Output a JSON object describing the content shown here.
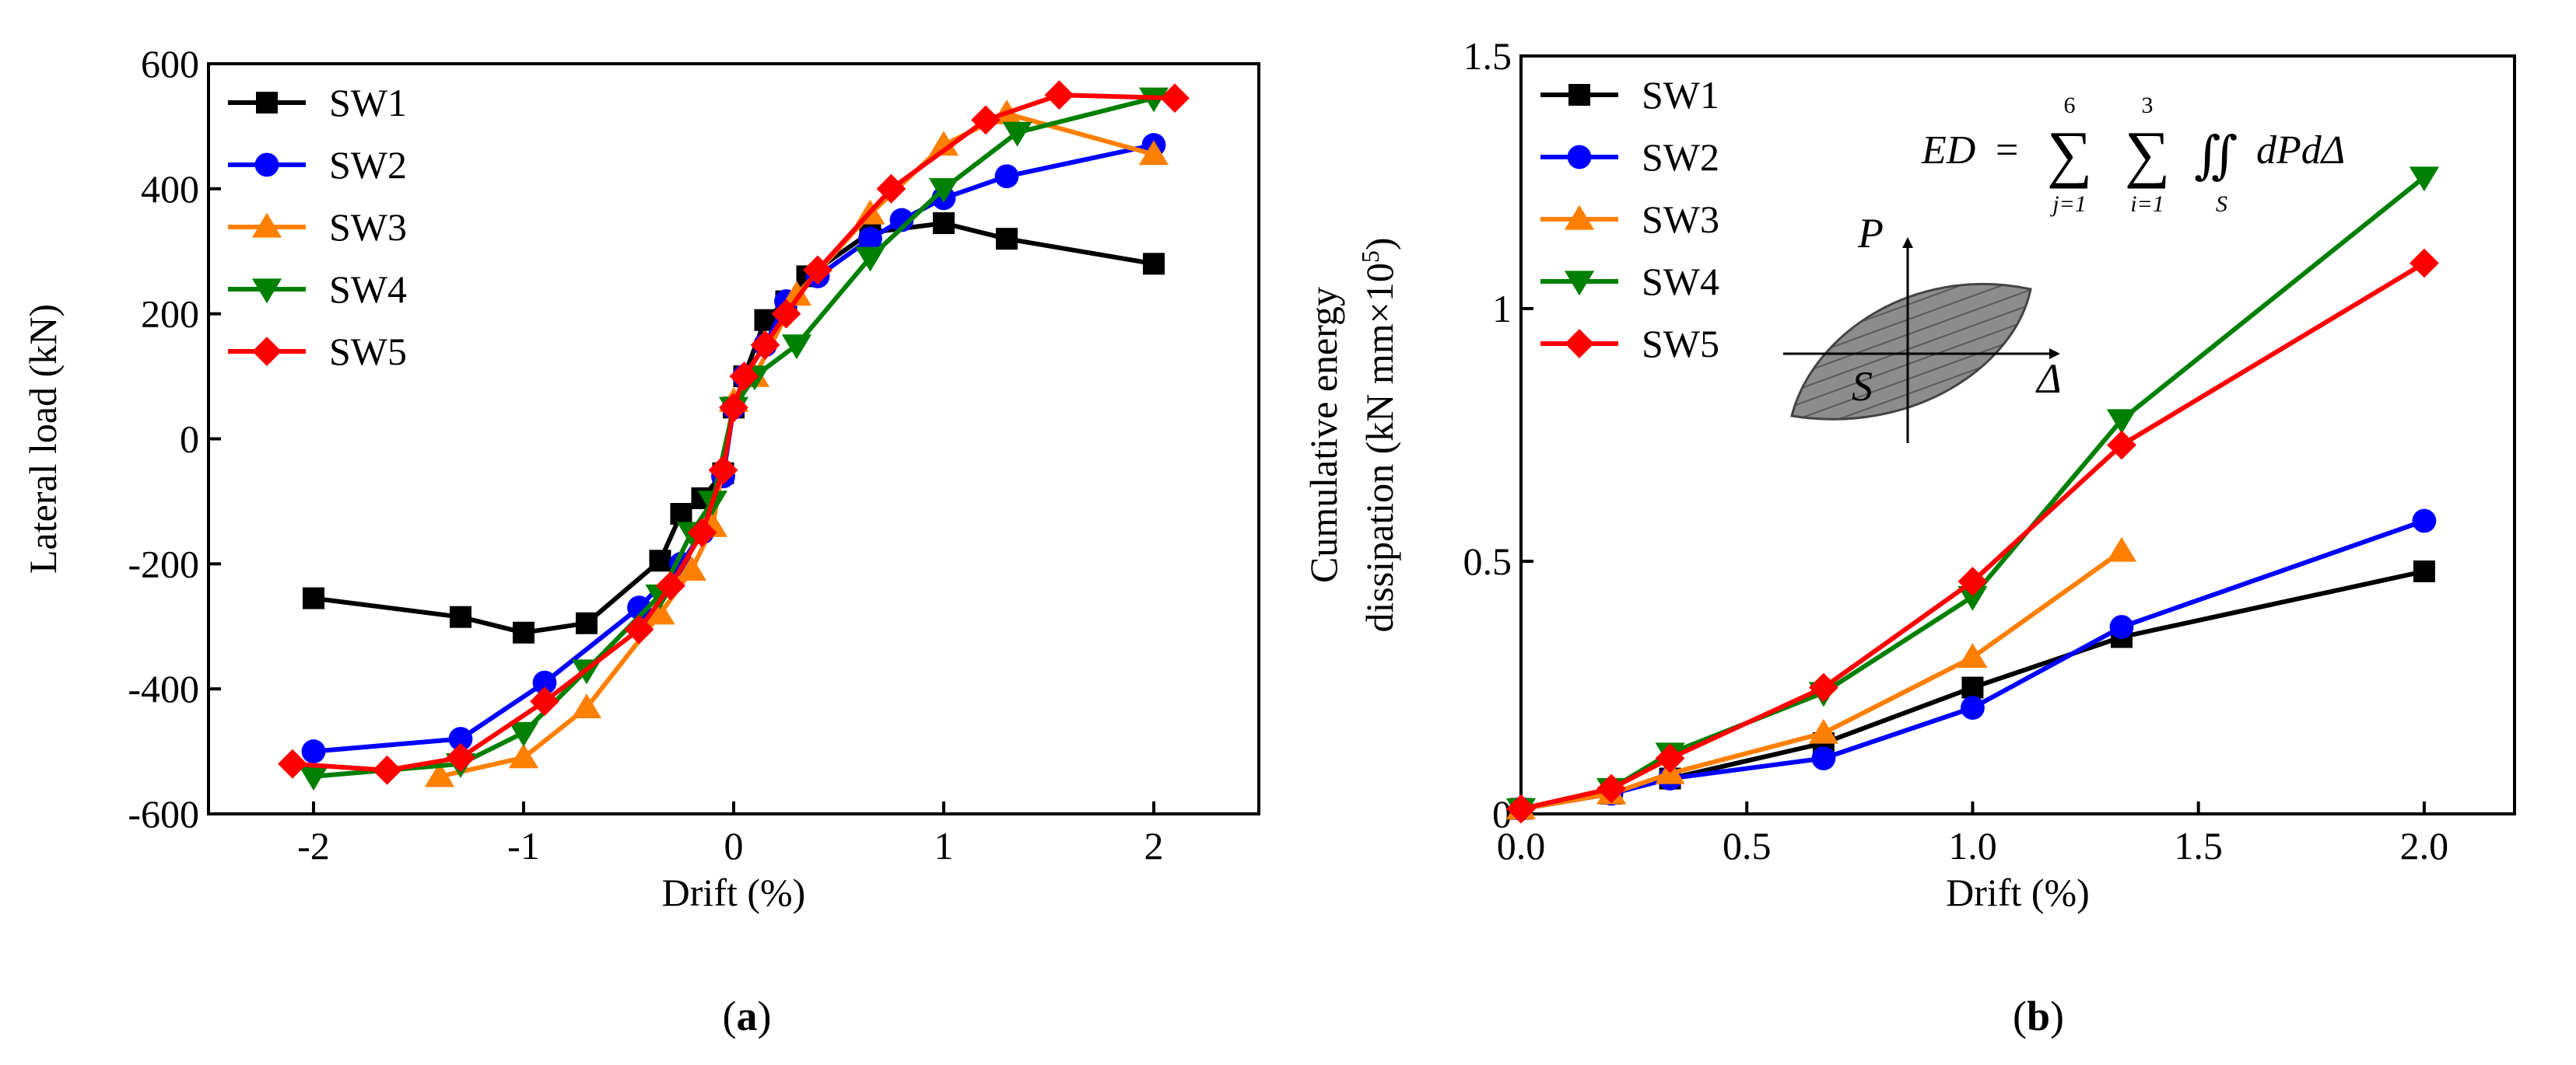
{
  "colors": {
    "SW1": "#000000",
    "SW2": "#0000ff",
    "SW3": "#ff7f00",
    "SW4": "#008000",
    "SW5": "#ff0000",
    "inset_fill": "#808080"
  },
  "panel_a": {
    "caption_open": "(",
    "caption_letter": "a",
    "caption_close": ")"
  },
  "panel_b": {
    "caption_open": "(",
    "caption_letter": "b",
    "caption_close": ")",
    "formula": {
      "lhs": "ED",
      "sum1_top": "6",
      "sum1_bottom": "j=1",
      "sum2_top": "3",
      "sum2_bottom": "i=1",
      "integral_sub": "S",
      "integrand": "dPdΔ"
    },
    "inset": {
      "p_label": "P",
      "s_label": "S",
      "delta_label": "Δ"
    }
  },
  "chart_data": [
    {
      "type": "line",
      "title": "",
      "xlabel": "Drift (%)",
      "ylabel": "Lateral load (kN)",
      "xlim": [
        -2.5,
        2.5
      ],
      "ylim": [
        -600,
        600
      ],
      "xticks": [
        -2,
        -1,
        0,
        1,
        2
      ],
      "yticks": [
        -600,
        -400,
        -200,
        0,
        200,
        400,
        600
      ],
      "grid": false,
      "legend_position": "top-left",
      "series": [
        {
          "name": "SW1",
          "marker": "square",
          "x": [
            -2.0,
            -1.3,
            -1.0,
            -0.7,
            -0.35,
            -0.25,
            -0.15,
            -0.05,
            0.0,
            0.05,
            0.15,
            0.25,
            0.35,
            0.65,
            1.0,
            1.3,
            2.0
          ],
          "y": [
            -255,
            -285,
            -310,
            -295,
            -195,
            -120,
            -95,
            -55,
            50,
            100,
            190,
            220,
            260,
            330,
            345,
            320,
            280
          ]
        },
        {
          "name": "SW2",
          "marker": "circle",
          "x": [
            -2.0,
            -1.3,
            -0.9,
            -0.45,
            -0.25,
            -0.15,
            -0.05,
            0.0,
            0.05,
            0.15,
            0.25,
            0.4,
            0.65,
            0.8,
            1.0,
            1.3,
            2.0
          ],
          "y": [
            -500,
            -480,
            -390,
            -270,
            -200,
            -150,
            -60,
            50,
            100,
            150,
            220,
            260,
            320,
            350,
            385,
            420,
            470
          ]
        },
        {
          "name": "SW3",
          "marker": "triangle-up",
          "x": [
            -1.4,
            -1.0,
            -0.7,
            -0.35,
            -0.2,
            -0.1,
            0.0,
            0.1,
            0.3,
            0.65,
            1.0,
            1.3,
            2.0
          ],
          "y": [
            -540,
            -510,
            -430,
            -280,
            -210,
            -140,
            60,
            100,
            230,
            360,
            470,
            520,
            455
          ]
        },
        {
          "name": "SW4",
          "marker": "triangle-down",
          "x": [
            -2.0,
            -1.3,
            -1.0,
            -0.7,
            -0.35,
            -0.2,
            -0.1,
            0.0,
            0.1,
            0.3,
            0.65,
            1.0,
            1.35,
            2.0
          ],
          "y": [
            -540,
            -520,
            -470,
            -370,
            -250,
            -150,
            -100,
            50,
            100,
            150,
            290,
            400,
            490,
            545
          ]
        },
        {
          "name": "SW5",
          "marker": "diamond",
          "x": [
            -2.1,
            -1.65,
            -1.3,
            -0.9,
            -0.45,
            -0.3,
            -0.15,
            -0.05,
            0.0,
            0.05,
            0.15,
            0.25,
            0.4,
            0.75,
            1.2,
            1.55,
            2.1
          ],
          "y": [
            -520,
            -530,
            -510,
            -420,
            -305,
            -235,
            -150,
            -50,
            50,
            100,
            150,
            200,
            270,
            400,
            510,
            550,
            545
          ]
        }
      ]
    },
    {
      "type": "line",
      "title": "",
      "xlabel": "Drift (%)",
      "ylabel_line1": "Cumulative energy",
      "ylabel_line2_main": "dissipation (kN mm×10",
      "ylabel_line2_sup": "5",
      "ylabel_line2_end": ")",
      "xlim": [
        0,
        2.2
      ],
      "ylim": [
        0,
        1.5
      ],
      "xticks": [
        0.0,
        0.5,
        1.0,
        1.5,
        2.0
      ],
      "xtick_labels": [
        "0.0",
        "0.5",
        "1.0",
        "1.5",
        "2.0"
      ],
      "yticks": [
        0,
        0.5,
        1,
        1.5
      ],
      "ytick_labels": [
        "0",
        "0.5",
        "1",
        "1.5"
      ],
      "grid": false,
      "legend_position": "top-left",
      "series": [
        {
          "name": "SW1",
          "marker": "square",
          "x": [
            0,
            0.2,
            0.33,
            0.67,
            1.0,
            1.33,
            2.0
          ],
          "y": [
            0.01,
            0.04,
            0.07,
            0.14,
            0.25,
            0.35,
            0.48
          ]
        },
        {
          "name": "SW2",
          "marker": "circle",
          "x": [
            0,
            0.2,
            0.33,
            0.67,
            1.0,
            1.33,
            2.0
          ],
          "y": [
            0.01,
            0.04,
            0.07,
            0.11,
            0.21,
            0.37,
            0.58
          ]
        },
        {
          "name": "SW3",
          "marker": "triangle-up",
          "x": [
            0,
            0.2,
            0.33,
            0.67,
            1.0,
            1.33
          ],
          "y": [
            0.01,
            0.04,
            0.08,
            0.16,
            0.31,
            0.52
          ]
        },
        {
          "name": "SW4",
          "marker": "triangle-down",
          "x": [
            0,
            0.2,
            0.33,
            0.67,
            1.0,
            1.33,
            2.0
          ],
          "y": [
            0.01,
            0.05,
            0.12,
            0.24,
            0.43,
            0.78,
            1.26
          ]
        },
        {
          "name": "SW5",
          "marker": "diamond",
          "x": [
            0,
            0.2,
            0.33,
            0.67,
            1.0,
            1.33,
            2.0
          ],
          "y": [
            0.01,
            0.05,
            0.11,
            0.25,
            0.46,
            0.73,
            1.09
          ]
        }
      ]
    }
  ]
}
